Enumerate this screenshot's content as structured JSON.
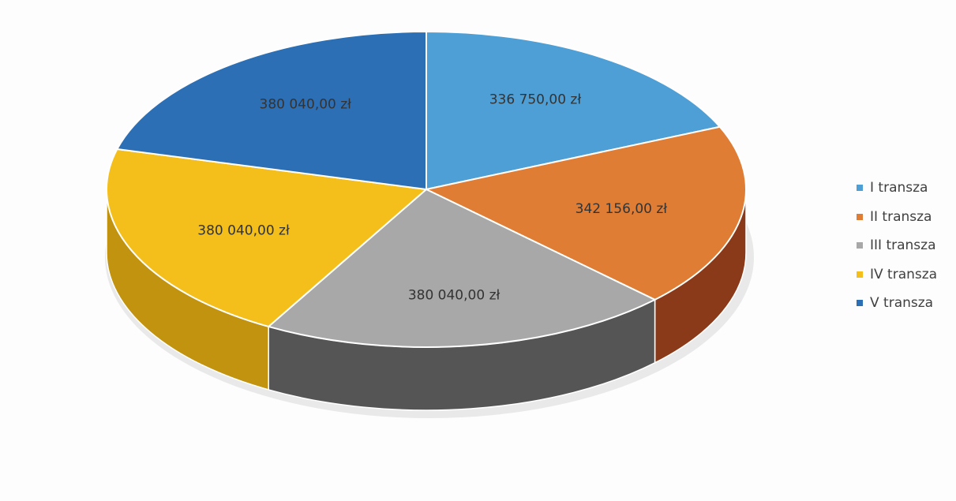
{
  "chart_data": {
    "type": "pie",
    "style": "3d",
    "legend_position": "right",
    "categories": [
      "I transza",
      "II transza",
      "III transza",
      "IV transza",
      "V transza"
    ],
    "values": [
      336750.0,
      342156.0,
      380040.0,
      380040.0,
      380040.0
    ],
    "data_labels": [
      "336 750,00 zł",
      "342 156,00 zł",
      "380 040,00 zł",
      "380 040,00 zł",
      "380 040,00 zł"
    ],
    "colors": [
      "#4e9fd6",
      "#e07d35",
      "#a8a8a8",
      "#f4bf1b",
      "#2d6fb5"
    ],
    "side_colors": [
      "#2a6e9a",
      "#8a3a18",
      "#555555",
      "#c2930f",
      "#1d4c80"
    ]
  }
}
